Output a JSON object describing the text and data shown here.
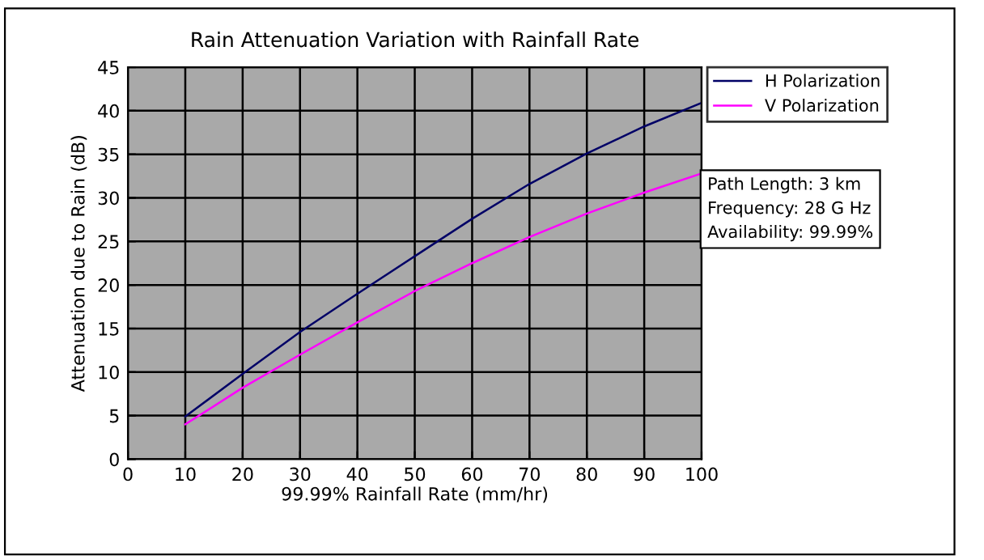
{
  "chart_data": {
    "type": "line",
    "title": "Rain Attenuation Variation with Rainfall Rate",
    "xlabel": "99.99% Rainfall Rate (mm/hr)",
    "ylabel": "Attenuation due to Rain (dB)",
    "x": [
      10,
      20,
      30,
      40,
      50,
      60,
      70,
      80,
      90,
      100
    ],
    "series": [
      {
        "name": "H Polarization",
        "color": "#000066",
        "values": [
          4.9,
          9.8,
          14.6,
          19.0,
          23.3,
          27.6,
          31.6,
          35.1,
          38.2,
          40.9
        ]
      },
      {
        "name": "V Polarization",
        "color": "#ff00ff",
        "values": [
          4.0,
          8.2,
          12.0,
          15.7,
          19.3,
          22.5,
          25.5,
          28.2,
          30.6,
          32.8
        ]
      }
    ],
    "annotations": [
      "Path Length: 3 km\nFrequency: 28 G Hz\nAvailability: 99.99%"
    ],
    "xlim": [
      0,
      100
    ],
    "xticks": [
      0,
      10,
      20,
      30,
      40,
      50,
      60,
      70,
      80,
      90,
      100
    ],
    "ylim": [
      0,
      45
    ],
    "yticks": [
      0,
      5,
      10,
      15,
      20,
      25,
      30,
      35,
      40,
      45
    ],
    "grid": true,
    "legend": "right",
    "marker": "none",
    "line_style": "solid"
  }
}
